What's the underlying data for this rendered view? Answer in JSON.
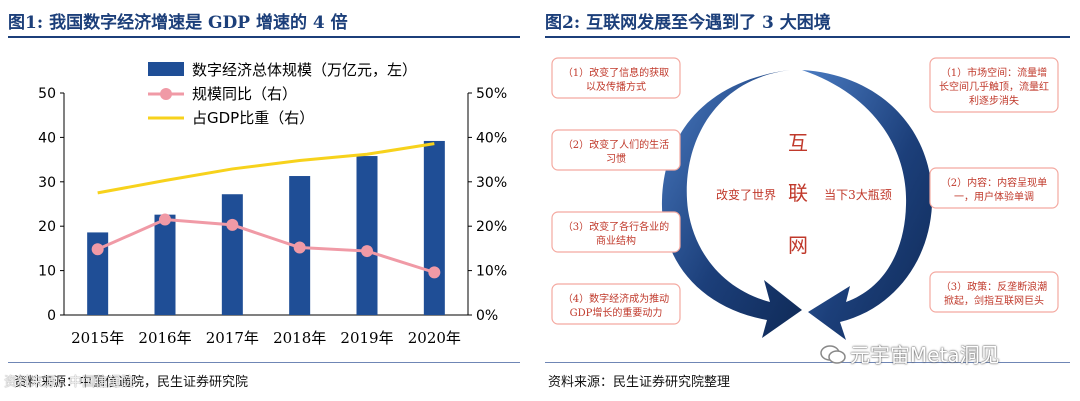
{
  "figure1": {
    "label": "图1:",
    "title": "我国数字经济增速是 GDP 增速的 4 倍",
    "source": "资料来源：中国信通院，民生证券研究院"
  },
  "figure2": {
    "label": "图2:",
    "title": "互联网发展至今遇到了 3 大困境",
    "source": "资料来源：民生证券研究院整理",
    "center_chars": [
      "互",
      "联",
      "网"
    ],
    "left_arrow_label": "改变了世界",
    "right_arrow_label": "当下3大瓶颈",
    "left_boxes": [
      "（1）改变了信息的获取以及传播方式",
      "（2）改变了人们的生活习惯",
      "（3）改变了各行各业的商业结构",
      "（4）数字经济成为推动GDP增长的重要动力"
    ],
    "right_boxes": [
      "（1）市场空间：流量增长空间几乎触顶，流量红利逐步消失",
      "（2）内容：内容呈现单一，用户体验单调",
      "（3）政策：反垄断浪潮掀起，剑指互联网巨头"
    ]
  },
  "watermark": {
    "text": "元宇宙Meta洞见",
    "left_text": "资料来源：中国信通院"
  },
  "colors": {
    "bar": "#1f4e96",
    "pink": "#f09aa6",
    "yellow": "#f7d21c",
    "navy": "#1c3f7a",
    "box_border": "#f4a9a0",
    "box_text": "#c0392b"
  },
  "chart_data": {
    "type": "bar",
    "categories": [
      "2015年",
      "2016年",
      "2017年",
      "2018年",
      "2019年",
      "2020年"
    ],
    "series": [
      {
        "name": "数字经济总体规模（万亿元，左）",
        "type": "bar",
        "axis": "left",
        "values": [
          18.6,
          22.6,
          27.2,
          31.3,
          35.8,
          39.2
        ]
      },
      {
        "name": "规模同比（右）",
        "type": "line",
        "axis": "right",
        "values": [
          14.8,
          21.5,
          20.3,
          15.2,
          14.4,
          9.6
        ]
      },
      {
        "name": "占GDP比重（右）",
        "type": "line",
        "axis": "right",
        "values": [
          27.5,
          30.3,
          32.9,
          34.8,
          36.2,
          38.6
        ]
      }
    ],
    "y_left": {
      "min": 0,
      "max": 50,
      "ticks": [
        0,
        10,
        20,
        30,
        40,
        50
      ]
    },
    "y_right": {
      "min": 0,
      "max": 50,
      "ticks": [
        "0%",
        "10%",
        "20%",
        "30%",
        "40%",
        "50%"
      ]
    },
    "legend_position": "top"
  }
}
